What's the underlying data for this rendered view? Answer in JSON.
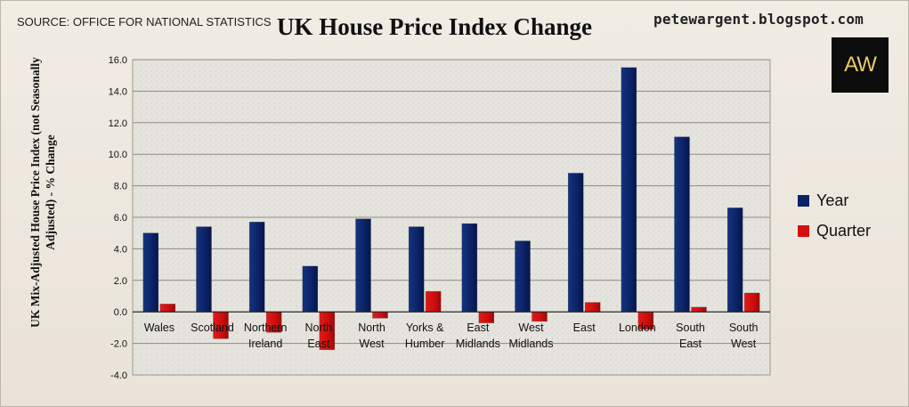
{
  "source_note": "SOURCE: OFFICE FOR NATIONAL STATISTICS",
  "website": "petewargent.blogspot.com",
  "logo_text": "AW",
  "colors": {
    "year": "#0b2266",
    "quarter": "#d40f0f",
    "logo_bg": "#0d0d0d",
    "logo_text": "#e9c86a"
  },
  "chart_data": {
    "type": "bar",
    "title": "UK House Price Index Change",
    "ylabel": "UK Mix-Adjusted House Price Index (not Seasonally Adjusted) - % Change",
    "xlabel": "",
    "ylim": [
      -4,
      16
    ],
    "yticks": [
      "16.0",
      "14.0",
      "12.0",
      "10.0",
      "8.0",
      "6.0",
      "4.0",
      "2.0",
      "0.0",
      "-2.0",
      "-4.0"
    ],
    "ytick_values": [
      16,
      14,
      12,
      10,
      8,
      6,
      4,
      2,
      0,
      -2,
      -4
    ],
    "grid": true,
    "legend_position": "right",
    "categories": [
      [
        "Wales"
      ],
      [
        "Scotland"
      ],
      [
        "Northern",
        "Ireland"
      ],
      [
        "North",
        "East"
      ],
      [
        "North",
        "West"
      ],
      [
        "Yorks &",
        "Humber"
      ],
      [
        "East",
        "Midlands"
      ],
      [
        "West",
        "Midlands"
      ],
      [
        "East"
      ],
      [
        "London"
      ],
      [
        "South",
        "East"
      ],
      [
        "South",
        "West"
      ]
    ],
    "series": [
      {
        "name": "Year",
        "values": [
          5.0,
          5.4,
          5.7,
          2.9,
          5.9,
          5.4,
          5.6,
          4.5,
          8.8,
          15.5,
          11.1,
          6.6
        ]
      },
      {
        "name": "Quarter",
        "values": [
          0.5,
          -1.7,
          -1.3,
          -2.4,
          -0.4,
          1.3,
          -0.7,
          -0.6,
          0.6,
          -1.1,
          0.3,
          1.2
        ]
      }
    ]
  }
}
